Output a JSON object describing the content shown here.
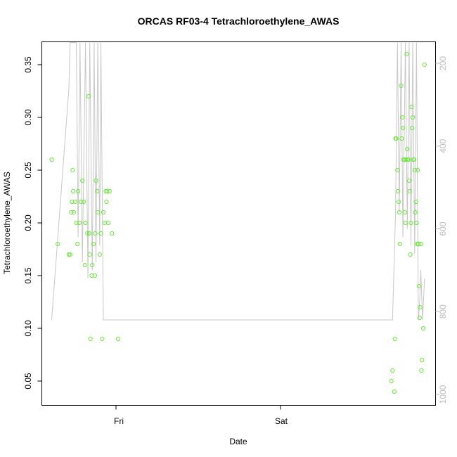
{
  "chart_data": {
    "type": "scatter",
    "title": "ORCAS RF03-4 Tetrachloroethylene_AWAS",
    "xlabel": "Date",
    "ylabel": "Tetrachloroethylene_AWAS",
    "x_ticks": [
      "Fri",
      "Sat"
    ],
    "y_ticks": [
      "0.05",
      "0.10",
      "0.15",
      "0.20",
      "0.25",
      "0.30",
      "0.35"
    ],
    "y2_ticks": [
      "200",
      "400",
      "600",
      "800",
      "1000"
    ],
    "ylim": [
      0.03,
      0.37
    ],
    "y2lim": [
      1010,
      150
    ],
    "grid": false,
    "colors": {
      "points": "#66ee33",
      "line": "#c8c8c8",
      "right_axis": "#bdbdbd"
    },
    "x_unit": "hours since Thursday 00:00",
    "series": [
      {
        "kind": "points",
        "x": [
          12.6,
          13.1,
          14.0,
          14.1,
          14.2,
          14.25,
          14.3,
          14.35,
          14.4,
          14.5,
          14.6,
          14.7,
          14.75,
          14.85,
          15.0,
          15.1,
          15.2,
          15.3,
          15.35,
          15.5,
          15.6,
          15.65,
          15.7,
          15.75,
          15.85,
          15.9,
          16.0,
          16.1,
          16.15,
          16.2,
          16.3,
          16.35,
          16.5,
          16.6,
          16.7,
          16.8,
          16.9,
          17.0,
          17.05,
          17.1,
          17.2,
          17.3,
          17.5,
          18.0,
          40.2,
          40.3,
          40.45,
          40.5,
          40.55,
          40.6,
          40.7,
          40.75,
          40.8,
          40.85,
          40.9,
          41.0,
          41.05,
          41.1,
          41.15,
          41.2,
          41.25,
          41.3,
          41.35,
          41.4,
          41.45,
          41.5,
          41.55,
          41.6,
          41.65,
          41.7,
          41.75,
          41.8,
          41.85,
          41.9,
          41.95,
          42.0,
          42.05,
          42.1,
          42.15,
          42.2,
          42.25,
          42.3,
          42.35,
          42.4,
          42.45,
          42.5,
          42.55,
          42.6,
          42.65,
          42.7,
          42.8,
          42.9
        ],
        "y": [
          0.26,
          0.18,
          0.17,
          0.17,
          0.21,
          0.22,
          0.25,
          0.23,
          0.21,
          0.22,
          0.2,
          0.18,
          0.23,
          0.2,
          0.22,
          0.24,
          0.22,
          0.16,
          0.2,
          0.19,
          0.32,
          0.19,
          0.17,
          0.09,
          0.15,
          0.16,
          0.18,
          0.15,
          0.19,
          0.24,
          0.23,
          0.21,
          0.17,
          0.19,
          0.09,
          0.21,
          0.2,
          0.23,
          0.22,
          0.23,
          0.2,
          0.23,
          0.19,
          0.09,
          0.05,
          0.06,
          0.04,
          0.09,
          0.28,
          0.28,
          0.25,
          0.23,
          0.22,
          0.21,
          0.18,
          0.33,
          0.28,
          0.3,
          0.29,
          0.26,
          0.26,
          0.21,
          0.2,
          0.26,
          0.36,
          0.27,
          0.26,
          0.26,
          0.24,
          0.23,
          0.17,
          0.2,
          0.31,
          0.29,
          0.3,
          0.26,
          0.26,
          0.25,
          0.21,
          0.22,
          0.2,
          0.18,
          0.25,
          0.18,
          0.14,
          0.11,
          0.12,
          0.18,
          0.06,
          0.07,
          0.1,
          0.35
        ]
      },
      {
        "kind": "line",
        "axis": "right",
        "x": [
          12.6,
          14.0,
          14.1,
          14.3,
          14.6,
          14.75,
          14.9,
          15.1,
          15.35,
          15.55,
          15.7,
          15.9,
          16.05,
          16.2,
          16.35,
          16.5,
          16.6,
          16.8,
          17.1,
          18.0,
          40.3,
          40.55,
          40.7,
          40.85,
          41.0,
          41.15,
          41.35,
          41.5,
          41.65,
          41.8,
          41.95,
          42.1,
          42.25,
          42.4,
          42.5,
          42.6,
          42.75,
          42.9
        ],
        "y": [
          820,
          260,
          150,
          150,
          150,
          620,
          150,
          680,
          150,
          720,
          150,
          700,
          150,
          680,
          150,
          640,
          150,
          820,
          820,
          820,
          820,
          560,
          150,
          560,
          150,
          620,
          150,
          600,
          150,
          640,
          150,
          660,
          150,
          820,
          780,
          700,
          820,
          720
        ]
      }
    ]
  }
}
